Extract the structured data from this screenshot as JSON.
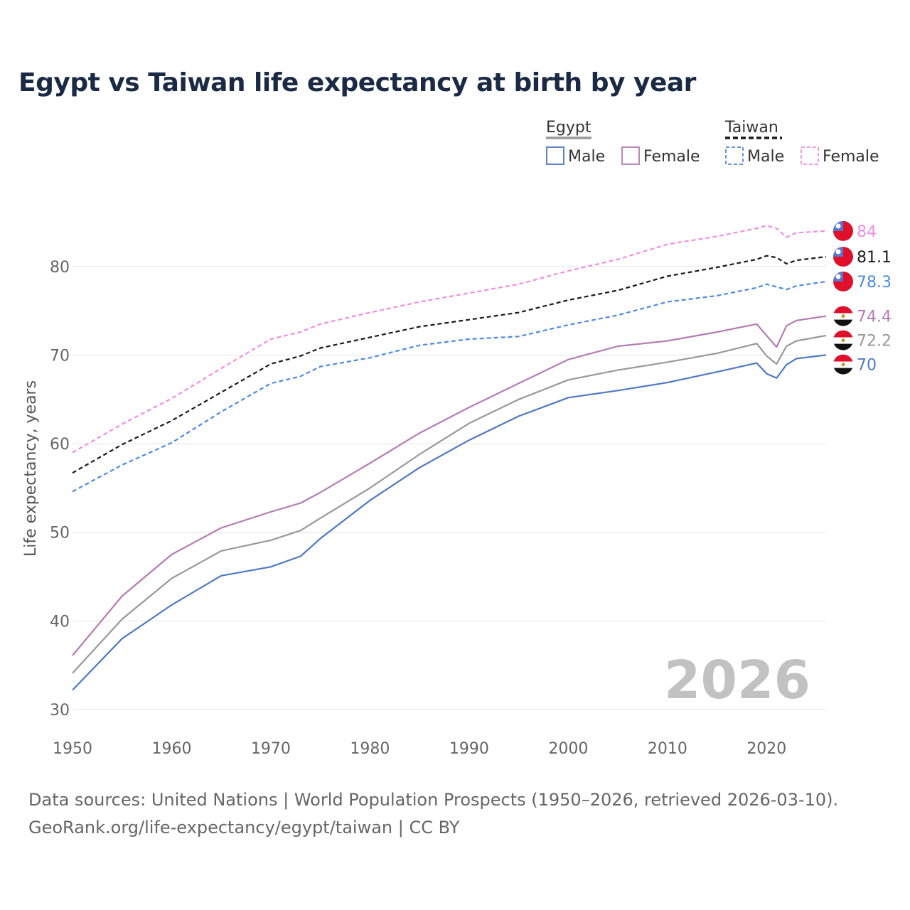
{
  "chart_data": {
    "type": "line",
    "title": "Egypt vs Taiwan life expectancy at birth by year",
    "xlabel": "",
    "ylabel": "Life expectancy, years",
    "xlim": [
      1950,
      2026
    ],
    "ylim": [
      30,
      86
    ],
    "x_ticks": [
      1950,
      1960,
      1970,
      1980,
      1990,
      2000,
      2010,
      2020
    ],
    "y_ticks": [
      30,
      40,
      50,
      60,
      70,
      80
    ],
    "year_label": "2026",
    "legend": {
      "groups": [
        {
          "name": "Egypt",
          "style": "solid",
          "items": [
            "Male",
            "Female"
          ]
        },
        {
          "name": "Taiwan",
          "style": "dashed",
          "items": [
            "Male",
            "Female"
          ]
        }
      ]
    },
    "colors": {
      "male": "#4e79c4",
      "female": "#b57cb3",
      "total_egypt": "#999999",
      "total_taiwan": "#1a1a1a",
      "male_taiwan": "#4e8ae0",
      "female_taiwan": "#f08ee0"
    },
    "x": [
      1950,
      1955,
      1960,
      1965,
      1970,
      1973,
      1975,
      1980,
      1985,
      1990,
      1995,
      2000,
      2005,
      2010,
      2015,
      2019,
      2020,
      2021,
      2022,
      2023,
      2026
    ],
    "series": [
      {
        "name": "Taiwan Female",
        "country": "Taiwan",
        "dash": true,
        "color": "#f08ee0",
        "end_label": "84",
        "values": [
          59.0,
          62.2,
          65.1,
          68.5,
          71.8,
          72.6,
          73.5,
          74.8,
          76.0,
          77.0,
          78.0,
          79.5,
          80.8,
          82.5,
          83.4,
          84.3,
          84.6,
          84.3,
          83.3,
          83.8,
          84.0
        ]
      },
      {
        "name": "Taiwan Total",
        "country": "Taiwan",
        "dash": true,
        "color": "#1a1a1a",
        "end_label": "81.1",
        "values": [
          56.7,
          59.9,
          62.6,
          65.8,
          69.0,
          69.9,
          70.8,
          72.0,
          73.2,
          74.0,
          74.8,
          76.2,
          77.3,
          78.9,
          79.9,
          80.8,
          81.2,
          81.0,
          80.3,
          80.7,
          81.1
        ]
      },
      {
        "name": "Taiwan Male",
        "country": "Taiwan",
        "dash": true,
        "color": "#4e8ae0",
        "end_label": "78.3",
        "values": [
          54.6,
          57.6,
          60.1,
          63.6,
          66.8,
          67.6,
          68.7,
          69.7,
          71.1,
          71.8,
          72.1,
          73.4,
          74.5,
          76.0,
          76.7,
          77.6,
          78.0,
          77.7,
          77.4,
          77.8,
          78.3
        ]
      },
      {
        "name": "Egypt Female",
        "country": "Egypt",
        "dash": false,
        "color": "#b57cb3",
        "end_label": "74.4",
        "values": [
          36.1,
          42.8,
          47.5,
          50.5,
          52.3,
          53.3,
          54.5,
          57.8,
          61.2,
          64.1,
          66.8,
          69.5,
          71.0,
          71.6,
          72.6,
          73.5,
          72.2,
          70.9,
          73.3,
          73.9,
          74.4
        ]
      },
      {
        "name": "Egypt Total",
        "country": "Egypt",
        "dash": false,
        "color": "#999999",
        "end_label": "72.2",
        "values": [
          34.1,
          40.2,
          44.8,
          47.9,
          49.1,
          50.2,
          51.6,
          55.0,
          58.8,
          62.3,
          65.0,
          67.2,
          68.3,
          69.2,
          70.2,
          71.3,
          69.9,
          69.0,
          71.0,
          71.6,
          72.2
        ]
      },
      {
        "name": "Egypt Male",
        "country": "Egypt",
        "dash": false,
        "color": "#4e79c4",
        "end_label": "70",
        "values": [
          32.2,
          38.0,
          41.8,
          45.1,
          46.1,
          47.3,
          49.3,
          53.6,
          57.3,
          60.4,
          63.1,
          65.2,
          66.0,
          66.9,
          68.1,
          69.1,
          67.9,
          67.4,
          68.9,
          69.6,
          70.0
        ]
      }
    ]
  },
  "footer": {
    "line1": "Data sources: United Nations | World Population Prospects (1950–2026, retrieved 2026-03-10).",
    "line2": "GeoRank.org/life-expectancy/egypt/taiwan | CC BY"
  }
}
